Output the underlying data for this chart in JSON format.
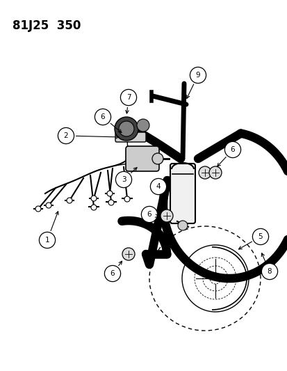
{
  "title": "81J25  350",
  "bg_color": "#ffffff",
  "line_color": "#000000",
  "title_fontsize": 12,
  "hose_lw": 9,
  "mid_lw": 1.5,
  "thin_lw": 1.0,
  "callout_r": 0.028,
  "callout_fs": 7.5
}
